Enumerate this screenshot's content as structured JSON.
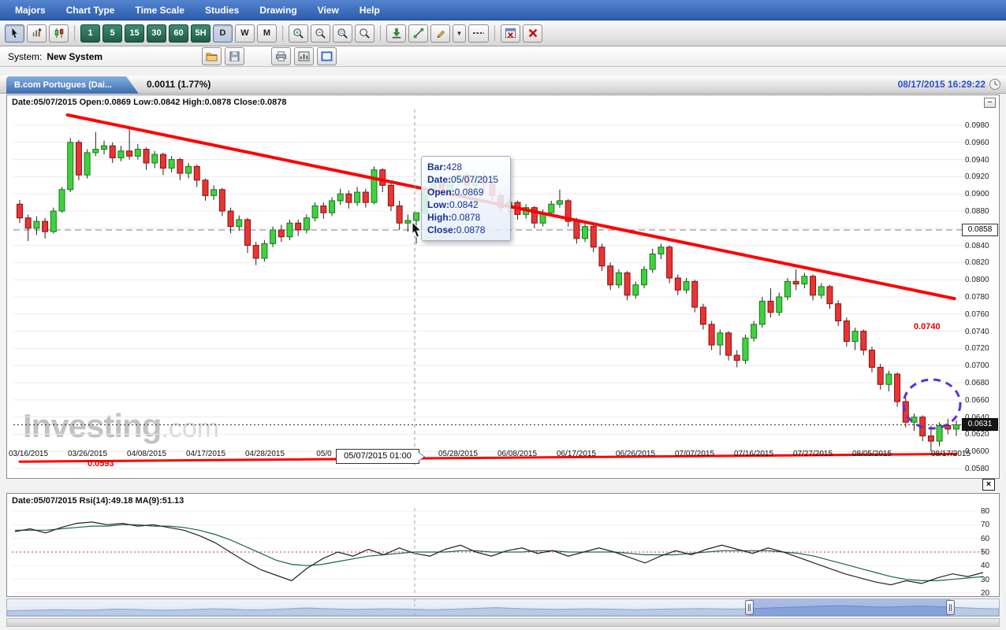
{
  "menubar": {
    "items": [
      "Majors",
      "Chart Type",
      "Time Scale",
      "Studies",
      "Drawing",
      "View",
      "Help"
    ]
  },
  "toolbar": {
    "timeframes": [
      "1",
      "5",
      "15",
      "30",
      "60",
      "5H"
    ],
    "periods": [
      "D",
      "W",
      "M"
    ]
  },
  "system_row": {
    "label": "System:",
    "value": "New System"
  },
  "tab_bar": {
    "tab_title": "B.com Portugues (Dai...",
    "change": "0.0011 (1.77%)",
    "timestamp": "08/17/2015 16:29:22"
  },
  "icons": {
    "minimize": "−",
    "close": "×",
    "dropdown": "▼"
  },
  "main_chart": {
    "ohlc_header": "Date:05/07/2015 Open:0.0869 Low:0.0842 High:0.0878 Close:0.0878",
    "price_marker": "0.0858",
    "last_price": "0.0631",
    "annotations": {
      "resistance_price": "0.0740",
      "support_price": "0.0593"
    },
    "highlighted_date": "05/07/2015 01:00",
    "watermark": {
      "brand": "Investing",
      "suffix": ".com"
    },
    "tooltip": {
      "rows": [
        {
          "label": "Bar:",
          "value": "428"
        },
        {
          "label": "Date:",
          "value": "05/07/2015"
        },
        {
          "label": "Open:",
          "value": "0.0869"
        },
        {
          "label": "Low:",
          "value": "0.0842"
        },
        {
          "label": "High:",
          "value": "0.0878"
        },
        {
          "label": "Close:",
          "value": "0.0878"
        }
      ]
    },
    "y_axis": [
      "0.0980",
      "0.0960",
      "0.0940",
      "0.0920",
      "0.0900",
      "0.0880",
      "0.0860",
      "0.0840",
      "0.0820",
      "0.0800",
      "0.0780",
      "0.0760",
      "0.0740",
      "0.0720",
      "0.0700",
      "0.0680",
      "0.0660",
      "0.0640",
      "0.0620",
      "0.0600",
      "0.0580"
    ],
    "x_axis": [
      "03/16/2015",
      "03/26/2015",
      "04/08/2015",
      "04/17/2015",
      "04/28/2015",
      "05/0",
      "05/28/2015",
      "06/08/2015",
      "06/17/2015",
      "06/26/2015",
      "07/07/2015",
      "07/16/2015",
      "07/27/2015",
      "08/05/2015",
      "08/17/2015"
    ]
  },
  "rsi_panel": {
    "header": "Date:05/07/2015 Rsi(14):49.18 MA(9):51.13",
    "y_axis": [
      "80",
      "70",
      "60",
      "50",
      "40",
      "30",
      "20"
    ]
  },
  "chart_data": {
    "type": "candlestick",
    "title": "B.com Portugues (Daily)",
    "y_range": [
      0.058,
      0.098
    ],
    "price_lines": {
      "dashed": 0.0858,
      "dotted": 0.0631
    },
    "trend_lines": [
      {
        "x0": 0.051,
        "p0": 0.0992,
        "x1": 0.998,
        "p1": 0.0778,
        "width": 4,
        "color": "#ff0000"
      },
      {
        "x0": 0.0,
        "p0": 0.0588,
        "x1": 1.0,
        "p1": 0.0597,
        "width": 3,
        "color": "#ff0000"
      }
    ],
    "ohlc": [
      [
        0.0888,
        0.0893,
        0.0866,
        0.0872
      ],
      [
        0.0872,
        0.0876,
        0.0845,
        0.086
      ],
      [
        0.086,
        0.0874,
        0.0852,
        0.0868
      ],
      [
        0.0868,
        0.0872,
        0.0848,
        0.0856
      ],
      [
        0.0856,
        0.0884,
        0.0854,
        0.088
      ],
      [
        0.088,
        0.0908,
        0.0878,
        0.0905
      ],
      [
        0.0905,
        0.0965,
        0.0902,
        0.096
      ],
      [
        0.096,
        0.0963,
        0.0916,
        0.0922
      ],
      [
        0.0922,
        0.0952,
        0.0918,
        0.0948
      ],
      [
        0.0948,
        0.0972,
        0.0944,
        0.0952
      ],
      [
        0.0952,
        0.0962,
        0.0946,
        0.0956
      ],
      [
        0.0956,
        0.096,
        0.0936,
        0.0942
      ],
      [
        0.0942,
        0.0956,
        0.0938,
        0.095
      ],
      [
        0.095,
        0.0978,
        0.094,
        0.0944
      ],
      [
        0.0944,
        0.0958,
        0.094,
        0.0952
      ],
      [
        0.0952,
        0.0954,
        0.0928,
        0.0936
      ],
      [
        0.0936,
        0.095,
        0.093,
        0.0946
      ],
      [
        0.0946,
        0.0948,
        0.0922,
        0.093
      ],
      [
        0.093,
        0.0944,
        0.0925,
        0.094
      ],
      [
        0.094,
        0.0942,
        0.0916,
        0.0924
      ],
      [
        0.0924,
        0.0936,
        0.0918,
        0.0932
      ],
      [
        0.0932,
        0.0934,
        0.0908,
        0.0916
      ],
      [
        0.0916,
        0.0918,
        0.0892,
        0.0898
      ],
      [
        0.0898,
        0.091,
        0.0893,
        0.0905
      ],
      [
        0.0905,
        0.0907,
        0.0874,
        0.088
      ],
      [
        0.088,
        0.0884,
        0.0854,
        0.0862
      ],
      [
        0.0862,
        0.0875,
        0.0857,
        0.087
      ],
      [
        0.087,
        0.0872,
        0.0831,
        0.084
      ],
      [
        0.084,
        0.0844,
        0.0817,
        0.0825
      ],
      [
        0.0825,
        0.0846,
        0.0821,
        0.0842
      ],
      [
        0.0842,
        0.0862,
        0.0838,
        0.0858
      ],
      [
        0.0858,
        0.0864,
        0.0844,
        0.085
      ],
      [
        0.085,
        0.087,
        0.0846,
        0.0866
      ],
      [
        0.0866,
        0.087,
        0.0851,
        0.0858
      ],
      [
        0.0858,
        0.0876,
        0.0854,
        0.0872
      ],
      [
        0.0872,
        0.089,
        0.0868,
        0.0886
      ],
      [
        0.0886,
        0.089,
        0.0871,
        0.0878
      ],
      [
        0.0878,
        0.0896,
        0.0874,
        0.0892
      ],
      [
        0.0892,
        0.0906,
        0.0887,
        0.09
      ],
      [
        0.09,
        0.0904,
        0.0883,
        0.089
      ],
      [
        0.089,
        0.0908,
        0.0886,
        0.0902
      ],
      [
        0.0902,
        0.0906,
        0.0884,
        0.089
      ],
      [
        0.089,
        0.0932,
        0.0888,
        0.0928
      ],
      [
        0.0928,
        0.093,
        0.0902,
        0.091
      ],
      [
        0.091,
        0.0914,
        0.088,
        0.0886
      ],
      [
        0.0886,
        0.0892,
        0.0858,
        0.0866
      ],
      [
        0.0866,
        0.0876,
        0.0856,
        0.0869
      ],
      [
        0.0869,
        0.0878,
        0.0842,
        0.0878
      ],
      [
        0.0878,
        0.091,
        0.0876,
        0.0905
      ],
      [
        0.0905,
        0.0918,
        0.0899,
        0.0912
      ],
      [
        0.0912,
        0.0916,
        0.0896,
        0.0903
      ],
      [
        0.0903,
        0.092,
        0.09,
        0.0915
      ],
      [
        0.0915,
        0.0928,
        0.091,
        0.0922
      ],
      [
        0.0922,
        0.0926,
        0.0903,
        0.091
      ],
      [
        0.091,
        0.0924,
        0.0905,
        0.092
      ],
      [
        0.092,
        0.0925,
        0.0904,
        0.0912
      ],
      [
        0.0912,
        0.0922,
        0.0893,
        0.0898
      ],
      [
        0.0898,
        0.0902,
        0.0878,
        0.0884
      ],
      [
        0.0884,
        0.0895,
        0.0876,
        0.089
      ],
      [
        0.089,
        0.0892,
        0.087,
        0.0876
      ],
      [
        0.0876,
        0.0888,
        0.0871,
        0.0884
      ],
      [
        0.0884,
        0.0886,
        0.086,
        0.0866
      ],
      [
        0.0866,
        0.0882,
        0.0862,
        0.0878
      ],
      [
        0.0878,
        0.0892,
        0.0874,
        0.0888
      ],
      [
        0.0888,
        0.0905,
        0.0884,
        0.0892
      ],
      [
        0.0892,
        0.0894,
        0.0862,
        0.0868
      ],
      [
        0.0868,
        0.0872,
        0.0842,
        0.0848
      ],
      [
        0.0848,
        0.0866,
        0.0844,
        0.0862
      ],
      [
        0.0862,
        0.0864,
        0.0832,
        0.0838
      ],
      [
        0.0838,
        0.0842,
        0.081,
        0.0816
      ],
      [
        0.0816,
        0.082,
        0.0788,
        0.0794
      ],
      [
        0.0794,
        0.0812,
        0.079,
        0.0808
      ],
      [
        0.0808,
        0.081,
        0.0776,
        0.0782
      ],
      [
        0.0782,
        0.0798,
        0.0778,
        0.0794
      ],
      [
        0.0794,
        0.0816,
        0.079,
        0.0812
      ],
      [
        0.0812,
        0.0836,
        0.0808,
        0.083
      ],
      [
        0.083,
        0.0842,
        0.0824,
        0.0838
      ],
      [
        0.0838,
        0.084,
        0.0796,
        0.0802
      ],
      [
        0.0802,
        0.0806,
        0.0782,
        0.0788
      ],
      [
        0.0788,
        0.0802,
        0.0784,
        0.0798
      ],
      [
        0.0798,
        0.08,
        0.0762,
        0.0768
      ],
      [
        0.0768,
        0.0772,
        0.0742,
        0.0748
      ],
      [
        0.0748,
        0.0752,
        0.0718,
        0.0724
      ],
      [
        0.0724,
        0.0742,
        0.0712,
        0.0738
      ],
      [
        0.0738,
        0.074,
        0.0706,
        0.0712
      ],
      [
        0.0712,
        0.0718,
        0.0698,
        0.0706
      ],
      [
        0.0706,
        0.0736,
        0.0702,
        0.0732
      ],
      [
        0.0732,
        0.0752,
        0.0728,
        0.0748
      ],
      [
        0.0748,
        0.078,
        0.0744,
        0.0775
      ],
      [
        0.0775,
        0.079,
        0.0756,
        0.0762
      ],
      [
        0.0762,
        0.0785,
        0.0758,
        0.078
      ],
      [
        0.078,
        0.0802,
        0.0776,
        0.0798
      ],
      [
        0.0798,
        0.0812,
        0.0788,
        0.0795
      ],
      [
        0.0795,
        0.0808,
        0.079,
        0.0804
      ],
      [
        0.0804,
        0.0806,
        0.0776,
        0.0782
      ],
      [
        0.0782,
        0.0796,
        0.0778,
        0.0792
      ],
      [
        0.0792,
        0.0794,
        0.0766,
        0.0772
      ],
      [
        0.0772,
        0.0776,
        0.0746,
        0.0752
      ],
      [
        0.0752,
        0.0756,
        0.0722,
        0.0728
      ],
      [
        0.0728,
        0.0744,
        0.0718,
        0.074
      ],
      [
        0.074,
        0.0742,
        0.0712,
        0.0718
      ],
      [
        0.0718,
        0.0722,
        0.0692,
        0.0698
      ],
      [
        0.0698,
        0.0702,
        0.0672,
        0.0678
      ],
      [
        0.0678,
        0.0694,
        0.067,
        0.069
      ],
      [
        0.069,
        0.0692,
        0.0652,
        0.0658
      ],
      [
        0.0658,
        0.0662,
        0.0628,
        0.0634
      ],
      [
        0.0634,
        0.0644,
        0.0624,
        0.064
      ],
      [
        0.064,
        0.0642,
        0.0612,
        0.0618
      ],
      [
        0.0618,
        0.063,
        0.06,
        0.0612
      ],
      [
        0.0612,
        0.0634,
        0.0606,
        0.063
      ],
      [
        0.063,
        0.0638,
        0.062,
        0.0626
      ],
      [
        0.0626,
        0.0636,
        0.0618,
        0.0631
      ]
    ],
    "rsi": {
      "type": "line",
      "range": [
        20,
        80
      ],
      "center": 50,
      "values": [
        65,
        67,
        64,
        68,
        71,
        72,
        70,
        71,
        69,
        70,
        68,
        66,
        62,
        57,
        50,
        43,
        37,
        33,
        29,
        38,
        45,
        50,
        47,
        52,
        48,
        53,
        49,
        47,
        52,
        55,
        50,
        47,
        51,
        53,
        49,
        51,
        47,
        50,
        53,
        50,
        46,
        42,
        47,
        51,
        48,
        52,
        55,
        52,
        49,
        53,
        50,
        46,
        42,
        38,
        34,
        31,
        28,
        26,
        29,
        27,
        31,
        34,
        32,
        35
      ],
      "ma_values": [
        66,
        66,
        66,
        67,
        68,
        69,
        69,
        70,
        70,
        69,
        69,
        68,
        66,
        63,
        59,
        54,
        49,
        44,
        41,
        40,
        41,
        43,
        45,
        47,
        48,
        49,
        50,
        50,
        50,
        51,
        51,
        50,
        50,
        50,
        51,
        51,
        50,
        50,
        50,
        50,
        49,
        48,
        48,
        48,
        49,
        50,
        51,
        51,
        51,
        51,
        50,
        49,
        47,
        44,
        41,
        38,
        35,
        32,
        30,
        29,
        29,
        30,
        31,
        32
      ]
    },
    "navigator": {
      "type": "area",
      "values": [
        0.3,
        0.32,
        0.35,
        0.38,
        0.36,
        0.34,
        0.38,
        0.42,
        0.4,
        0.36,
        0.34,
        0.36,
        0.4,
        0.44,
        0.42,
        0.38,
        0.36,
        0.4,
        0.45,
        0.5,
        0.46,
        0.42,
        0.4,
        0.42,
        0.44,
        0.42,
        0.4,
        0.38,
        0.4,
        0.44,
        0.48,
        0.52,
        0.48,
        0.44,
        0.42,
        0.4,
        0.42,
        0.44,
        0.42,
        0.4,
        0.38,
        0.4,
        0.42,
        0.44,
        0.46,
        0.44,
        0.42,
        0.44,
        0.48,
        0.52,
        0.56,
        0.6,
        0.64,
        0.66,
        0.62,
        0.58,
        0.56,
        0.6,
        0.64,
        0.6,
        0.55,
        0.5,
        0.46,
        0.44
      ]
    }
  },
  "colors": {
    "up": "#3fd23f",
    "down": "#e83535",
    "trend": "#ff0000",
    "accent_blue": "#2d5cab"
  }
}
